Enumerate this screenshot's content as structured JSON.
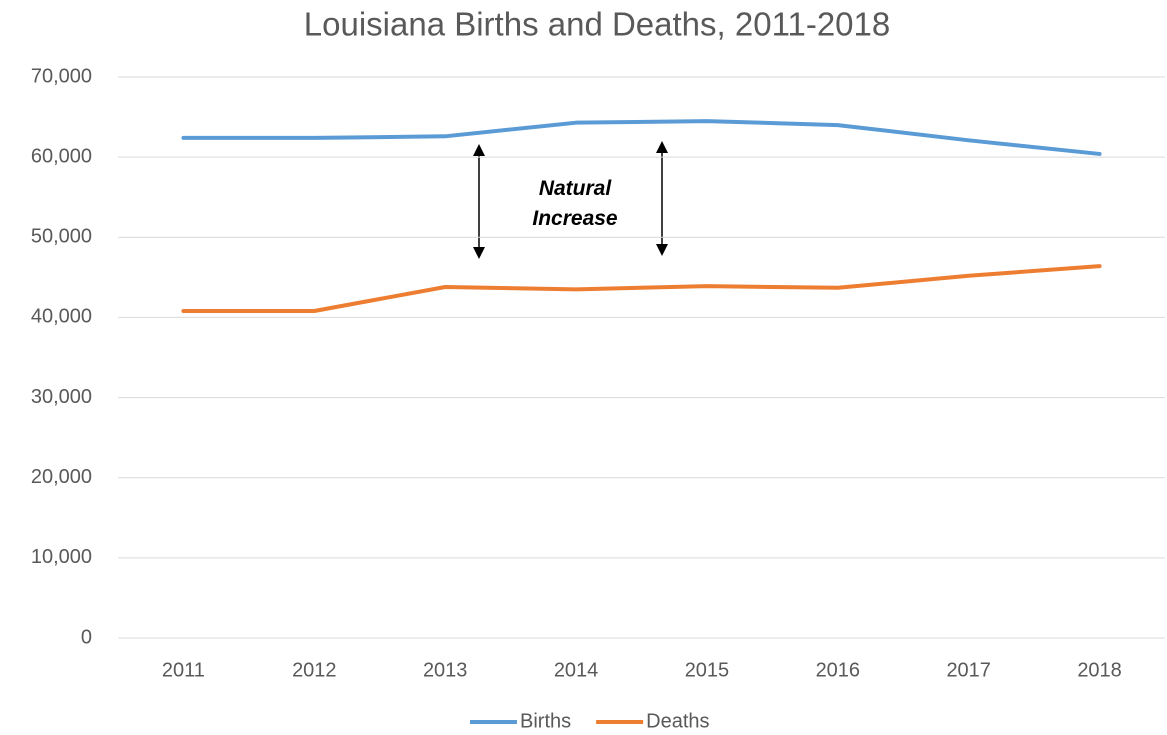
{
  "chart_data": {
    "type": "line",
    "title": "Louisiana Births and Deaths, 2011-2018",
    "categories": [
      "2011",
      "2012",
      "2013",
      "2014",
      "2015",
      "2016",
      "2017",
      "2018"
    ],
    "series": [
      {
        "name": "Births",
        "color": "#5b9bd5",
        "values": [
          62400,
          62400,
          62600,
          64300,
          64500,
          64000,
          62100,
          60400
        ]
      },
      {
        "name": "Deaths",
        "color": "#ed7d31",
        "values": [
          40800,
          40800,
          43800,
          43500,
          43900,
          43700,
          45200,
          46400
        ]
      }
    ],
    "ylim": [
      0,
      70000
    ],
    "yticks": [
      0,
      {
        "value": 10000,
        "label": "10,000"
      },
      {
        "value": 20000,
        "label": "20,000"
      },
      {
        "value": 30000,
        "label": "30,000"
      },
      {
        "value": 40000,
        "label": "40,000"
      },
      {
        "value": 50000,
        "label": "50,000"
      },
      {
        "value": 60000,
        "label": "60,000"
      },
      {
        "value": 70000,
        "label": "70,000"
      }
    ],
    "grid": true,
    "legend": "bottom",
    "annotation": "Natural Increase"
  }
}
